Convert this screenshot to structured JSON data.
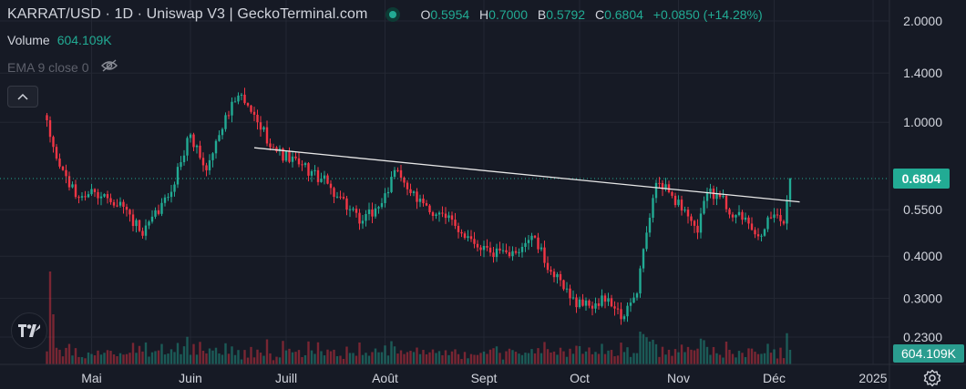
{
  "legend": {
    "title": "KARRAT/USD · 1D · Uniswap V3 | GeckoTerminal.com",
    "ohlc": {
      "o_label": "O",
      "o_value": "0.5954",
      "h_label": "H",
      "h_value": "0.7000",
      "b_label": "B",
      "b_value": "0.5792",
      "c_label": "C",
      "c_value": "0.6804",
      "change": "+0.0850 (+14.28%)"
    },
    "volume_label": "Volume",
    "volume_value": "604.109K",
    "ema_label": "EMA 9 close 0"
  },
  "colors": {
    "background": "#161a25",
    "up": "#22ab94",
    "down": "#f23645",
    "grid": "#232733",
    "text": "#d1d4dc",
    "trendline": "#e8e8e8",
    "price_label_bg": "#22ab94",
    "volume_label_bg": "#2a9d8f"
  },
  "icons": {
    "status": "status-dot-icon",
    "visibility": "eye-off-icon",
    "collapse": "chevron-up-icon",
    "logo": "tradingview-logo-icon",
    "settings": "gear-icon"
  },
  "chart_data": {
    "type": "candlestick",
    "title": "KARRAT/USD · 1D · Uniswap V3 | GeckoTerminal.com",
    "y_scale": "log",
    "ylim": [
      0.22,
      2.1
    ],
    "y_ticks": [
      "2.0000",
      "1.4000",
      "1.0000",
      "0.5500",
      "0.4000",
      "0.3000",
      "0.2300"
    ],
    "y_tick_values": [
      2.0,
      1.4,
      1.0,
      0.55,
      0.4,
      0.3,
      0.23
    ],
    "x_ticks": [
      "Mai",
      "Juin",
      "Juill",
      "Août",
      "Sept",
      "Oct",
      "Nov",
      "Déc",
      "2025"
    ],
    "x_tick_dates": [
      "2024-05-01",
      "2024-06-01",
      "2024-07-01",
      "2024-08-01",
      "2024-09-01",
      "2024-10-01",
      "2024-11-01",
      "2024-12-01",
      "2025-01-01"
    ],
    "first_candle_date": "2024-04-16",
    "last_candle_date": "2024-12-06",
    "last_price": 0.6804,
    "last_price_label": "0.6804",
    "last_volume_label": "604.109K",
    "close_anchors": [
      [
        "2024-04-16",
        1.05
      ],
      [
        "2024-04-20",
        0.78
      ],
      [
        "2024-04-26",
        0.6
      ],
      [
        "2024-05-02",
        0.62
      ],
      [
        "2024-05-10",
        0.58
      ],
      [
        "2024-05-17",
        0.46
      ],
      [
        "2024-05-25",
        0.6
      ],
      [
        "2024-06-01",
        0.92
      ],
      [
        "2024-06-06",
        0.72
      ],
      [
        "2024-06-12",
        1.05
      ],
      [
        "2024-06-16",
        1.2
      ],
      [
        "2024-06-22",
        1.0
      ],
      [
        "2024-06-28",
        0.82
      ],
      [
        "2024-07-05",
        0.75
      ],
      [
        "2024-07-12",
        0.68
      ],
      [
        "2024-07-18",
        0.6
      ],
      [
        "2024-07-24",
        0.5
      ],
      [
        "2024-07-30",
        0.56
      ],
      [
        "2024-08-05",
        0.72
      ],
      [
        "2024-08-11",
        0.58
      ],
      [
        "2024-08-20",
        0.52
      ],
      [
        "2024-08-28",
        0.45
      ],
      [
        "2024-09-03",
        0.41
      ],
      [
        "2024-09-09",
        0.4
      ],
      [
        "2024-09-16",
        0.46
      ],
      [
        "2024-09-22",
        0.36
      ],
      [
        "2024-09-28",
        0.3
      ],
      [
        "2024-10-04",
        0.285
      ],
      [
        "2024-10-10",
        0.3
      ],
      [
        "2024-10-14",
        0.26
      ],
      [
        "2024-10-19",
        0.31
      ],
      [
        "2024-10-22",
        0.47
      ],
      [
        "2024-10-25",
        0.66
      ],
      [
        "2024-10-29",
        0.62
      ],
      [
        "2024-11-03",
        0.55
      ],
      [
        "2024-11-07",
        0.47
      ],
      [
        "2024-11-10",
        0.62
      ],
      [
        "2024-11-14",
        0.6
      ],
      [
        "2024-11-19",
        0.53
      ],
      [
        "2024-11-23",
        0.5
      ],
      [
        "2024-11-27",
        0.46
      ],
      [
        "2024-11-30",
        0.52
      ],
      [
        "2024-12-02",
        0.53
      ],
      [
        "2024-12-04",
        0.5
      ],
      [
        "2024-12-06",
        0.6804
      ]
    ],
    "trendline": {
      "from": [
        "2024-06-21",
        0.84
      ],
      "to": [
        "2024-12-09",
        0.58
      ]
    }
  }
}
